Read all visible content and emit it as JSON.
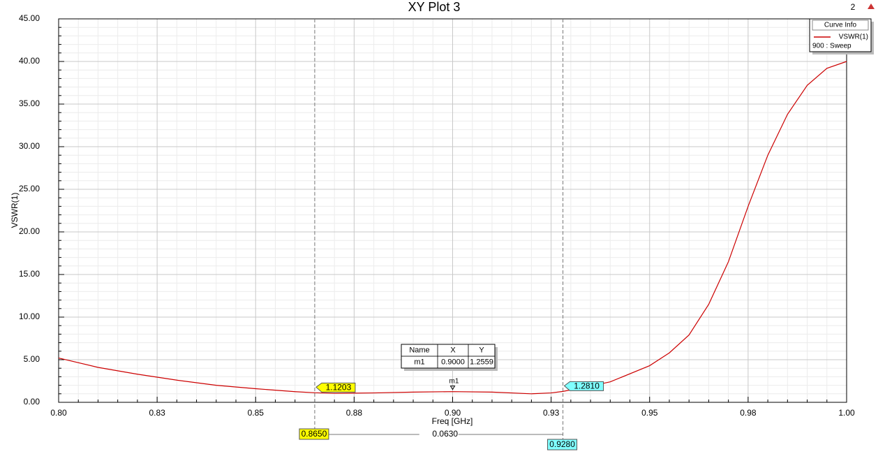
{
  "chart_data": {
    "type": "line",
    "title": "XY Plot 3",
    "corner_label": "2",
    "x_label": "Freq [GHz]",
    "y_label": "VSWR(1)",
    "x": [
      0.8,
      0.81,
      0.82,
      0.83,
      0.84,
      0.85,
      0.86,
      0.865,
      0.87,
      0.88,
      0.89,
      0.9,
      0.91,
      0.92,
      0.925,
      0.928,
      0.935,
      0.94,
      0.95,
      0.955,
      0.96,
      0.965,
      0.97,
      0.975,
      0.98,
      0.985,
      0.99,
      0.995,
      1.0
    ],
    "series": [
      {
        "name": "VSWR(1)",
        "color": "#cc0000",
        "values": [
          5.2,
          4.1,
          3.3,
          2.6,
          2.0,
          1.6,
          1.25,
          1.12,
          1.05,
          1.1,
          1.2,
          1.256,
          1.2,
          1.0,
          1.1,
          1.281,
          1.9,
          2.4,
          4.3,
          5.8,
          7.9,
          11.5,
          16.5,
          23.0,
          29.0,
          33.8,
          37.2,
          39.2,
          40.0
        ]
      }
    ],
    "legend_title": "Curve Info",
    "legend_sub": "900 : Sweep",
    "legend_position": "upper right",
    "xlim": [
      0.8,
      1.0
    ],
    "xticks": [
      {
        "value": 0.8,
        "label": "0.80"
      },
      {
        "value": 0.825,
        "label": "0.83"
      },
      {
        "value": 0.85,
        "label": "0.85"
      },
      {
        "value": 0.875,
        "label": "0.88"
      },
      {
        "value": 0.9,
        "label": "0.90"
      },
      {
        "value": 0.925,
        "label": "0.93"
      },
      {
        "value": 0.95,
        "label": "0.95"
      },
      {
        "value": 0.975,
        "label": "0.98"
      },
      {
        "value": 1.0,
        "label": "1.00"
      }
    ],
    "ylim": [
      0,
      45
    ],
    "yticks": [
      {
        "value": 0,
        "label": "0.00"
      },
      {
        "value": 5,
        "label": "5.00"
      },
      {
        "value": 10,
        "label": "10.00"
      },
      {
        "value": 15,
        "label": "15.00"
      },
      {
        "value": 20,
        "label": "20.00"
      },
      {
        "value": 25,
        "label": "25.00"
      },
      {
        "value": 30,
        "label": "30.00"
      },
      {
        "value": 35,
        "label": "35.00"
      },
      {
        "value": 40,
        "label": "40.00"
      },
      {
        "value": 45,
        "label": "45.00"
      }
    ],
    "grid": true,
    "minor_divisions": 5,
    "delta_markers": [
      {
        "x": {
          "value": 0.865,
          "label": "0.8650"
        },
        "y": {
          "value": 1.1203,
          "label": "1.1203"
        },
        "color": "#ffff00"
      },
      {
        "x": {
          "value": 0.928,
          "label": "0.9280"
        },
        "y": {
          "value": 1.281,
          "label": "1.2810"
        },
        "color": "#80ffff"
      }
    ],
    "delta_label": "0.0630",
    "point_marker": {
      "name": "m1",
      "x": 0.9,
      "y": 1.2559
    },
    "marker_table": {
      "columns": [
        "Name",
        "X",
        "Y"
      ],
      "rows": [
        [
          "m1",
          "0.9000",
          "1.2559"
        ]
      ]
    }
  }
}
